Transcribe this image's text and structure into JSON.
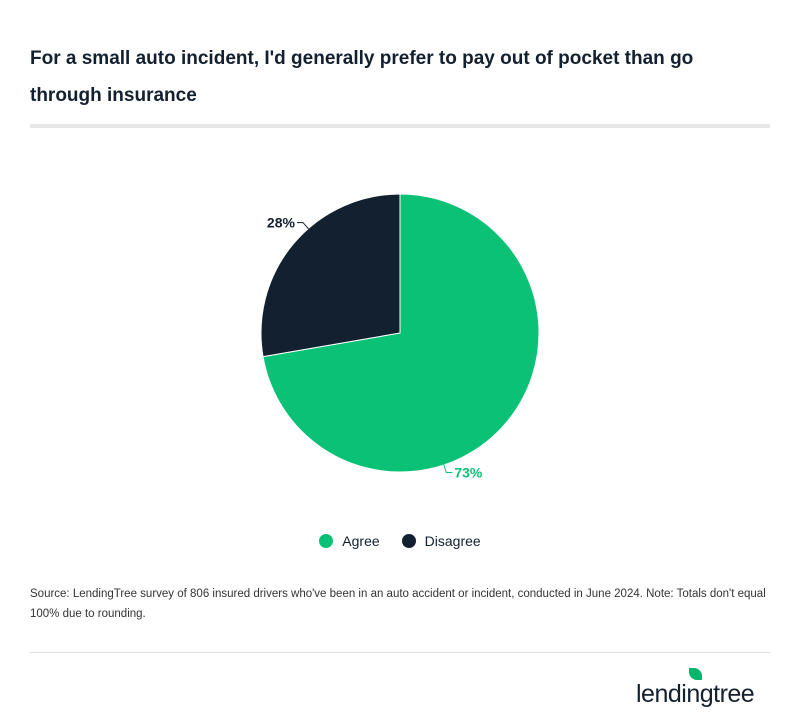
{
  "chart_data": {
    "type": "pie",
    "title": "For a small auto incident, I'd generally prefer to pay out of pocket than go through insurance",
    "slices": [
      {
        "name": "Agree",
        "value": 73,
        "label": "73%",
        "color": "#0bc175"
      },
      {
        "name": "Disagree",
        "value": 28,
        "label": "28%",
        "color": "#13202f"
      }
    ],
    "legend": "bottom"
  },
  "source": "Source: LendingTree survey of 806 insured drivers who've been in an auto accident or incident, conducted in June 2024. Note: Totals don't equal 100% due to rounding.",
  "logo": "lendingtree"
}
